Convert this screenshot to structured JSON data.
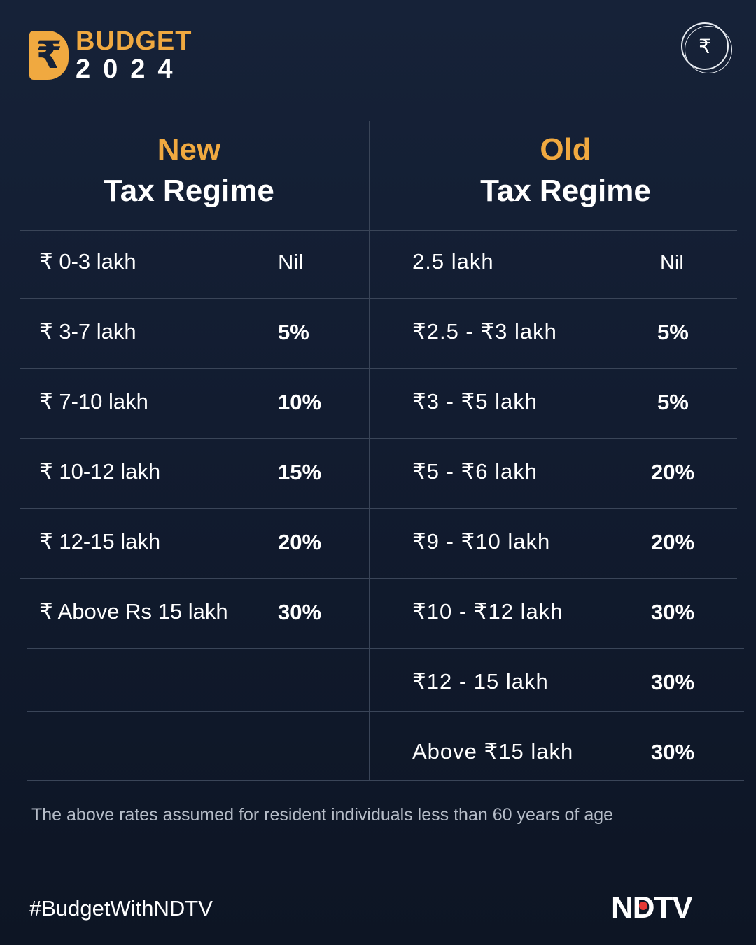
{
  "header": {
    "logo_symbol": "₹",
    "logo_word": "BUDGET",
    "logo_year": "2024",
    "corner_icon": "₹"
  },
  "columns": {
    "new": {
      "kind": "New",
      "title": "Tax Regime"
    },
    "old": {
      "kind": "Old",
      "title": "Tax Regime"
    }
  },
  "new_regime": [
    {
      "slab": "₹ 0-3 lakh",
      "rate": "Nil"
    },
    {
      "slab": "₹ 3-7 lakh",
      "rate": "5%"
    },
    {
      "slab": "₹ 7-10 lakh",
      "rate": "10%"
    },
    {
      "slab": "₹ 10-12 lakh",
      "rate": "15%"
    },
    {
      "slab": "₹ 12-15 lakh",
      "rate": "20%"
    },
    {
      "slab": "₹ Above Rs 15 lakh",
      "rate": "30%"
    }
  ],
  "old_regime": [
    {
      "slab": "2.5 lakh",
      "rate": "Nil"
    },
    {
      "slab": "₹2.5 - ₹3 lakh",
      "rate": "5%"
    },
    {
      "slab": "₹3 - ₹5 lakh",
      "rate": "5%"
    },
    {
      "slab": "₹5 - ₹6 lakh",
      "rate": "20%"
    },
    {
      "slab": "₹9 - ₹10 lakh",
      "rate": "20%"
    },
    {
      "slab": "₹10 - ₹12 lakh",
      "rate": "30%"
    },
    {
      "slab": "₹12 - 15 lakh",
      "rate": "30%"
    },
    {
      "slab": "Above ₹15 lakh",
      "rate": "30%"
    }
  ],
  "footnote": "The above rates assumed for resident individuals less than 60 years of age",
  "footer": {
    "hashtag": "#BudgetWithNDTV",
    "brand": "NDTV"
  },
  "colors": {
    "accent": "#f0a940",
    "background": "#121c30",
    "brand_dot": "#e53935"
  },
  "icons": {
    "logo": "rupee-logo-icon",
    "corner": "rupee-coin-icon"
  }
}
